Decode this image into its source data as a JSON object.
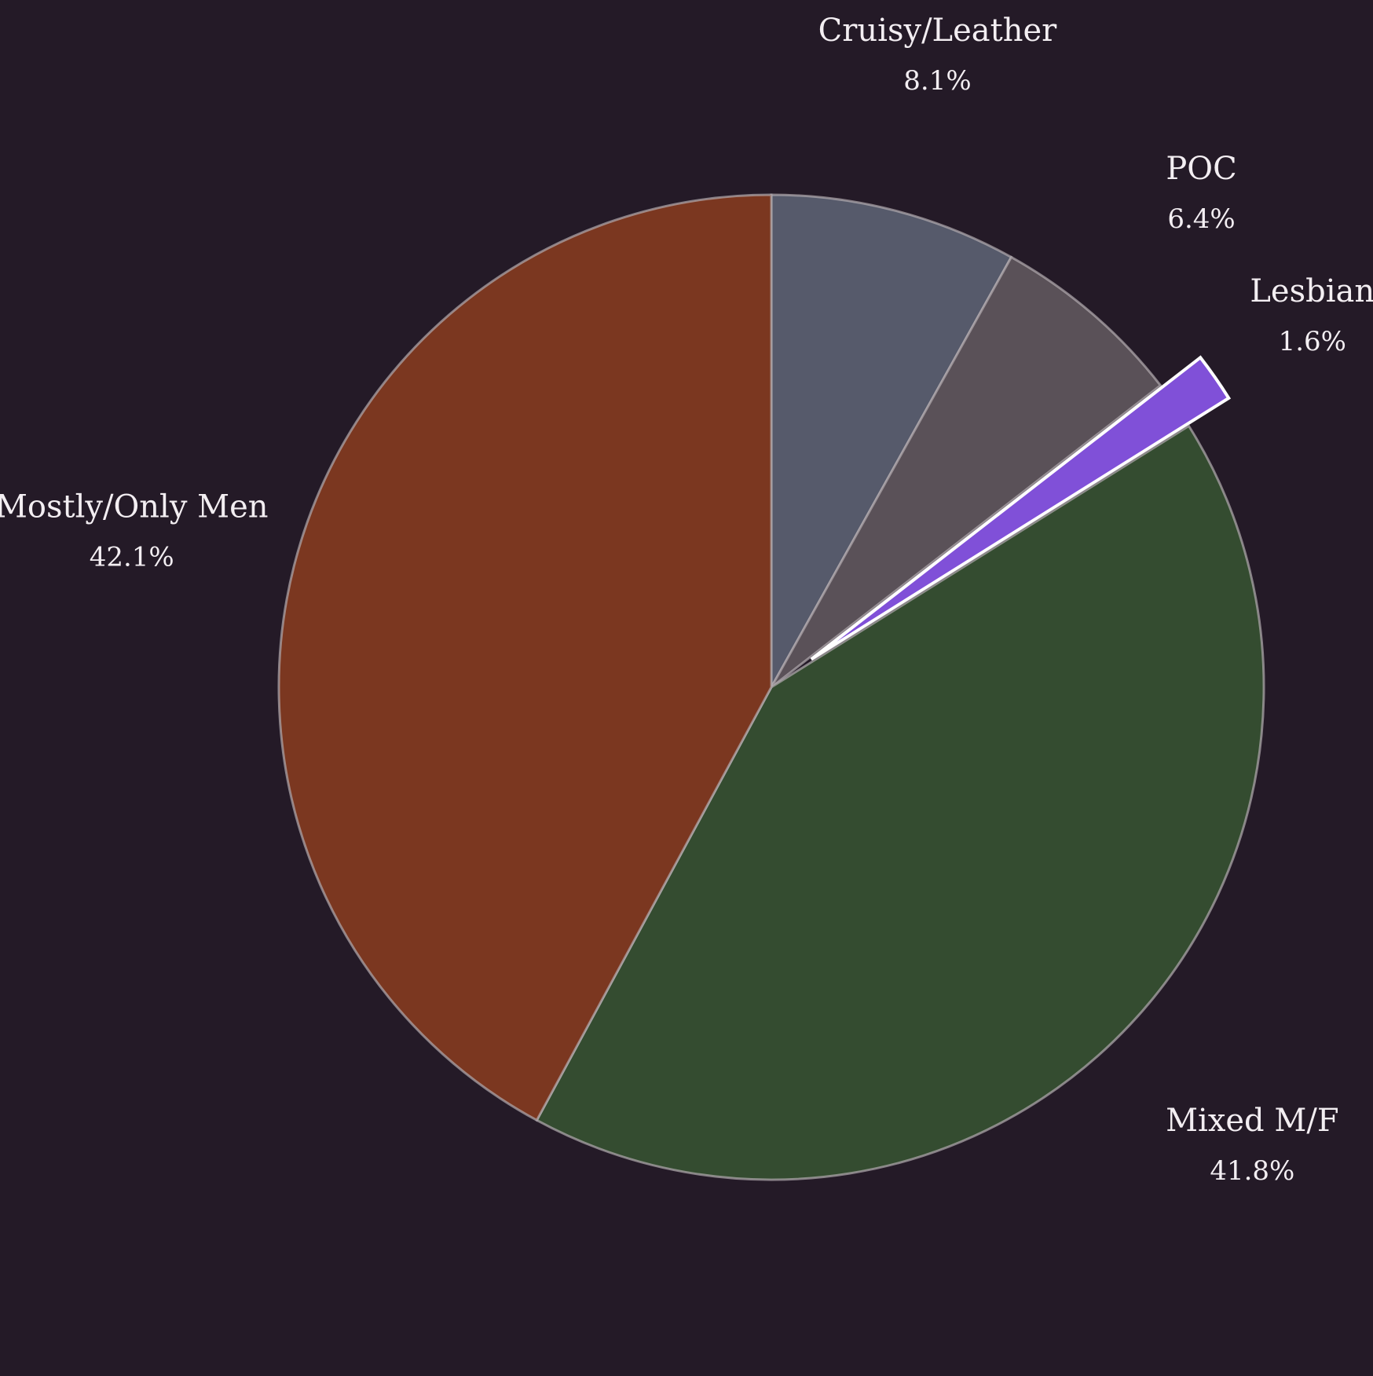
{
  "chart_data": {
    "type": "pie",
    "title": "",
    "start_angle_deg": 90,
    "direction": "clockwise",
    "exploded": [
      "Lesbian"
    ],
    "slices": [
      {
        "label": "Cruisy/Leather",
        "value": 8.1,
        "pct_text": "8.1%",
        "color": "#565a6b"
      },
      {
        "label": "POC",
        "value": 6.4,
        "pct_text": "6.4%",
        "color": "#5a5158"
      },
      {
        "label": "Lesbian",
        "value": 1.6,
        "pct_text": "1.6%",
        "color": "#8050d8"
      },
      {
        "label": "Mixed M/F",
        "value": 41.8,
        "pct_text": "41.8%",
        "color": "#344c30"
      },
      {
        "label": "Mostly/Only Men",
        "value": 42.1,
        "pct_text": "42.1%",
        "color": "#7b3720"
      }
    ],
    "colors": {
      "background": "#241a27",
      "slice_edge": "#b3adb0",
      "exploded_edge": "#ffffff",
      "label_text": "#f3eef2"
    }
  }
}
